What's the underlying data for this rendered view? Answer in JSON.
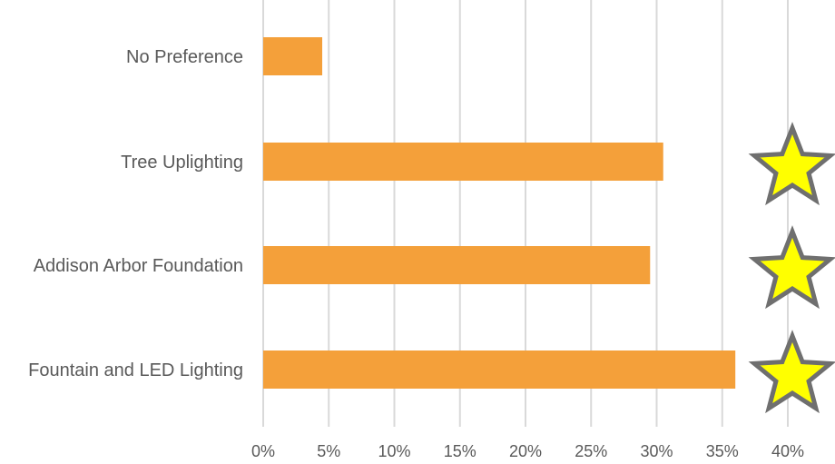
{
  "chart_data": {
    "type": "bar",
    "orientation": "horizontal",
    "categories": [
      "No Preference",
      "Tree Uplighting",
      "Addison Arbor Foundation",
      "Fountain and LED Lighting"
    ],
    "values": [
      4.5,
      30.5,
      29.5,
      36
    ],
    "value_unit": "%",
    "xlim": [
      0,
      40
    ],
    "x_ticks": [
      "0%",
      "5%",
      "10%",
      "15%",
      "20%",
      "25%",
      "30%",
      "35%",
      "40%"
    ],
    "grid": true,
    "bar_color": "#f4a03a",
    "highlighted_categories": [
      "Tree Uplighting",
      "Addison Arbor Foundation",
      "Fountain and LED Lighting"
    ],
    "highlight_icon": "star-icon",
    "highlight_color": "#ffff00"
  }
}
